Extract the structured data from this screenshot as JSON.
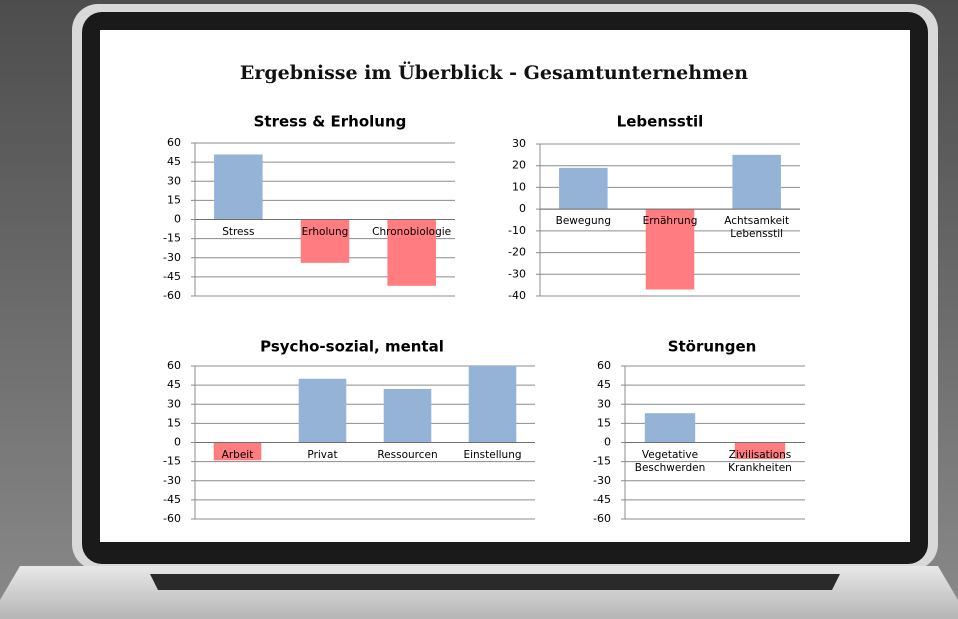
{
  "title": "Ergebnisse im Überblick - Gesamtunternehmen",
  "chart_data": [
    {
      "type": "bar",
      "title": "Stress & Erholung",
      "categories": [
        "Stress",
        "Erholung",
        "Chronobiologie"
      ],
      "values": [
        51,
        -34,
        -52
      ],
      "colors": [
        "#95b3d7",
        "#ff7c80",
        "#ff7c80"
      ],
      "ylim": [
        -60,
        60
      ],
      "yticks": [
        60,
        45,
        30,
        15,
        0,
        -15,
        -30,
        -45,
        -60
      ],
      "grid": true
    },
    {
      "type": "bar",
      "title": "Lebensstil",
      "categories": [
        "Bewegung",
        "Ernährung",
        "Achtsamkeit Lebensstil"
      ],
      "values": [
        19,
        -37,
        25
      ],
      "colors": [
        "#95b3d7",
        "#ff7c80",
        "#95b3d7"
      ],
      "ylim": [
        -40,
        30
      ],
      "yticks": [
        30,
        20,
        10,
        0,
        -10,
        -20,
        -30,
        -40
      ],
      "grid": true
    },
    {
      "type": "bar",
      "title": "Psycho-sozial, mental",
      "categories": [
        "Arbeit",
        "Privat",
        "Ressourcen",
        "Einstellung"
      ],
      "values": [
        -14,
        50,
        42,
        60
      ],
      "colors": [
        "#ff7c80",
        "#95b3d7",
        "#95b3d7",
        "#95b3d7"
      ],
      "ylim": [
        -60,
        60
      ],
      "yticks": [
        60,
        45,
        30,
        15,
        0,
        -15,
        -30,
        -45,
        -60
      ],
      "grid": true
    },
    {
      "type": "bar",
      "title": "Störungen",
      "categories": [
        "Vegetative Beschwerden",
        "Zivilisations Krankheiten"
      ],
      "values": [
        23,
        -13
      ],
      "colors": [
        "#95b3d7",
        "#ff7c80"
      ],
      "ylim": [
        -60,
        60
      ],
      "yticks": [
        60,
        45,
        30,
        15,
        0,
        -15,
        -30,
        -45,
        -60
      ],
      "grid": true
    }
  ]
}
